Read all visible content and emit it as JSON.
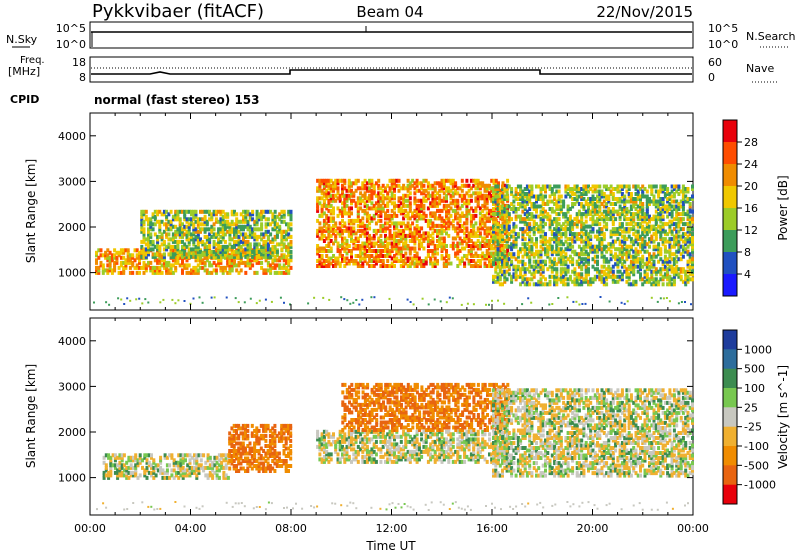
{
  "header": {
    "station": "Pykkvibaer (fitACF)",
    "beam": "Beam 04",
    "date": "22/Nov/2015"
  },
  "noise_panel": {
    "left_label": "N.Sky",
    "left_ticks": [
      "10^5",
      "10^0"
    ],
    "right_label": "N.Search",
    "right_ticks": [
      "10^5",
      "10^0"
    ]
  },
  "freq_panel": {
    "left_label_1": "Freq.",
    "left_label_2": "[MHz]",
    "left_ticks": [
      "18",
      "8"
    ],
    "right_label": "Nave",
    "right_ticks": [
      "60",
      "0"
    ],
    "cpid_label": "CPID",
    "cpid_text": "normal (fast stereo) 153"
  },
  "chart_data": [
    {
      "type": "heatmap",
      "name": "power",
      "ylabel": "Slant Range [km]",
      "xlabel": "",
      "ylim": [
        180,
        4500
      ],
      "y_ticks": [
        "1000",
        "2000",
        "3000",
        "4000"
      ],
      "colorbar_label": "Power [dB]",
      "colorbar_ticks": [
        "28",
        "24",
        "20",
        "16",
        "12",
        "8",
        "4"
      ],
      "colorbar_colors": [
        "#e8000b",
        "#ff4d00",
        "#f08c00",
        "#f0c800",
        "#9ccc28",
        "#3c9c5a",
        "#2050c0",
        "#1a1aff"
      ],
      "echo_regions": [
        {
          "t_start": 0.2,
          "t_end": 8.0,
          "r_low": 950,
          "r_high": 1450,
          "power_db": 20
        },
        {
          "t_start": 2.0,
          "t_end": 8.0,
          "r_low": 1300,
          "r_high": 2300,
          "power_db": 14
        },
        {
          "t_start": 9.0,
          "t_end": 16.6,
          "r_low": 1100,
          "r_high": 3000,
          "power_db": 22
        },
        {
          "t_start": 16.0,
          "t_end": 24.0,
          "r_low": 700,
          "r_high": 2900,
          "power_db": 14
        }
      ]
    },
    {
      "type": "heatmap",
      "name": "velocity",
      "ylabel": "Slant Range [km]",
      "xlabel": "Time UT",
      "ylim": [
        180,
        4500
      ],
      "y_ticks": [
        "1000",
        "2000",
        "3000",
        "4000"
      ],
      "x_ticks": [
        "00:00",
        "04:00",
        "08:00",
        "12:00",
        "16:00",
        "20:00",
        "00:00"
      ],
      "colorbar_label": "Velocity [m s^-1]",
      "colorbar_ticks": [
        "1000",
        "500",
        "100",
        "25",
        "-25",
        "-100",
        "-500",
        "-1000"
      ],
      "colorbar_colors": [
        "#1e3c9c",
        "#2d6d9c",
        "#3c8c50",
        "#78c850",
        "#c8c8c0",
        "#f0b030",
        "#f08c00",
        "#e86410",
        "#e8000b"
      ],
      "echo_regions": [
        {
          "t_start": 0.5,
          "t_end": 5.5,
          "r_low": 950,
          "r_high": 1450,
          "velocity": 0
        },
        {
          "t_start": 5.5,
          "t_end": 8.0,
          "r_low": 1100,
          "r_high": 2100,
          "velocity": -300
        },
        {
          "t_start": 9.0,
          "t_end": 16.6,
          "r_low": 1300,
          "r_high": 2000,
          "velocity": 0
        },
        {
          "t_start": 10.0,
          "t_end": 16.6,
          "r_low": 2000,
          "r_high": 3000,
          "velocity": -300
        },
        {
          "t_start": 16.0,
          "t_end": 24.0,
          "r_low": 1000,
          "r_high": 2900,
          "velocity": 0
        }
      ]
    }
  ]
}
